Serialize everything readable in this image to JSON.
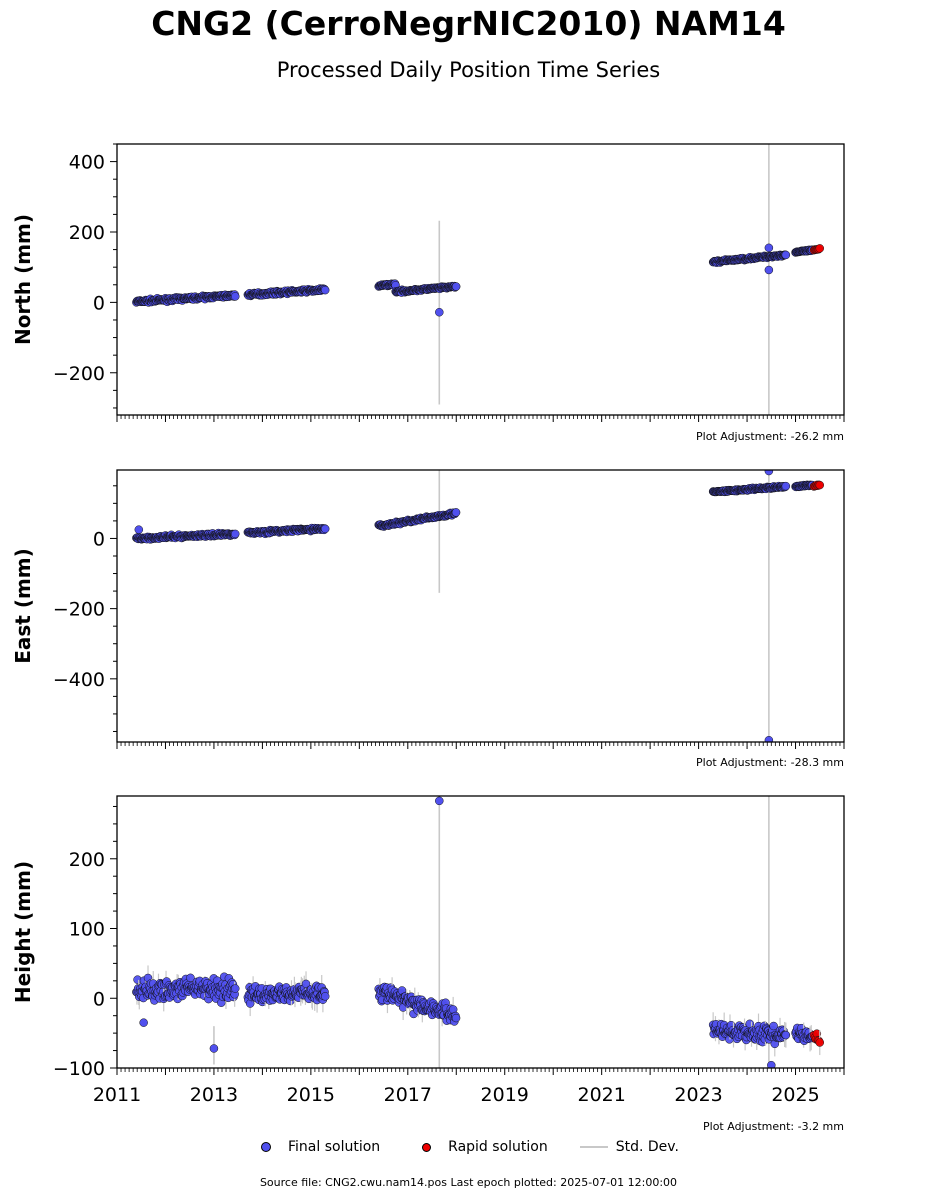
{
  "title": "CNG2 (CerroNegrNIC2010) NAM14",
  "subtitle": "Processed Daily Position Time Series",
  "source": "Source file: CNG2.cwu.nam14.pos  Last epoch plotted: 2025-07-01 12:00:00",
  "legend": {
    "final": "Final solution",
    "rapid": "Rapid solution",
    "std": "Std. Dev."
  },
  "colors": {
    "final": "#5050ee",
    "rapid": "#ee0000",
    "std": "#c8c8c8"
  },
  "chart_data": [
    {
      "type": "scatter",
      "id": "north",
      "ylabel": "North (mm)",
      "adjustment": "Plot Adjustment: -26.2 mm",
      "xlim": [
        2011,
        2026
      ],
      "ylim": [
        -320,
        450
      ],
      "yticks": [
        -200,
        0,
        200,
        400
      ],
      "ytick_labels": [
        "−200",
        "0",
        "200",
        "400"
      ],
      "segments": [
        {
          "x": [
            2011.4,
            2013.45
          ],
          "y": [
            2,
            20
          ],
          "noise": 4
        },
        {
          "x": [
            2013.7,
            2015.3
          ],
          "y": [
            22,
            36
          ],
          "noise": 4
        },
        {
          "x": [
            2016.4,
            2016.75
          ],
          "y": [
            47,
            52
          ],
          "noise": 3
        },
        {
          "x": [
            2016.75,
            2018.0
          ],
          "y": [
            30,
            45
          ],
          "noise": 3
        },
        {
          "x": [
            2023.3,
            2024.8
          ],
          "y": [
            115,
            135
          ],
          "noise": 3
        },
        {
          "x": [
            2025.0,
            2025.35
          ],
          "y": [
            143,
            148
          ],
          "noise": 2
        }
      ],
      "rapid": {
        "x": [
          2025.38,
          2025.5
        ],
        "y": [
          148,
          152
        ],
        "noise": 2
      },
      "outliers": [
        {
          "x": 2017.65,
          "y": -28
        },
        {
          "x": 2024.45,
          "y": 155
        },
        {
          "x": 2024.45,
          "y": 92
        }
      ],
      "std_lines": [
        {
          "x": 2017.65,
          "y0": -290,
          "y1": 232
        },
        {
          "x": 2024.45,
          "y0": -320,
          "y1": 450
        }
      ]
    },
    {
      "type": "scatter",
      "id": "east",
      "ylabel": "East (mm)",
      "adjustment": "Plot Adjustment: -28.3 mm",
      "xlim": [
        2011,
        2026
      ],
      "ylim": [
        -580,
        195
      ],
      "yticks": [
        -400,
        -200,
        0
      ],
      "ytick_labels": [
        "−400",
        "−200",
        "0"
      ],
      "segments": [
        {
          "x": [
            2011.4,
            2013.45
          ],
          "y": [
            0,
            13
          ],
          "noise": 4
        },
        {
          "x": [
            2013.7,
            2015.3
          ],
          "y": [
            16,
            28
          ],
          "noise": 4
        },
        {
          "x": [
            2016.4,
            2018.0
          ],
          "y": [
            35,
            72
          ],
          "noise": 4
        },
        {
          "x": [
            2023.3,
            2024.8
          ],
          "y": [
            132,
            148
          ],
          "noise": 3
        },
        {
          "x": [
            2025.0,
            2025.35
          ],
          "y": [
            148,
            152
          ],
          "noise": 2
        }
      ],
      "rapid": {
        "x": [
          2025.38,
          2025.5
        ],
        "y": [
          150,
          153
        ],
        "noise": 2
      },
      "outliers": [
        {
          "x": 2011.45,
          "y": 25
        },
        {
          "x": 2024.45,
          "y": 192
        },
        {
          "x": 2024.45,
          "y": -575
        }
      ],
      "std_lines": [
        {
          "x": 2017.65,
          "y0": -155,
          "y1": 195
        },
        {
          "x": 2024.45,
          "y0": -580,
          "y1": 195
        }
      ]
    },
    {
      "type": "scatter",
      "id": "height",
      "ylabel": "Height (mm)",
      "adjustment": "Plot Adjustment: -3.2 mm",
      "xlim": [
        2011,
        2026
      ],
      "ylim": [
        -100,
        290
      ],
      "yticks": [
        -100,
        0,
        100,
        200
      ],
      "ytick_labels": [
        "−100",
        "0",
        "100",
        "200"
      ],
      "xticks": [
        2011,
        2013,
        2015,
        2017,
        2019,
        2021,
        2023,
        2025
      ],
      "xtick_labels": [
        "2011",
        "2013",
        "2015",
        "2017",
        "2019",
        "2021",
        "2023",
        "2025"
      ],
      "segments": [
        {
          "x": [
            2011.4,
            2013.45
          ],
          "y": [
            10,
            15
          ],
          "noise": 14
        },
        {
          "x": [
            2013.7,
            2015.3
          ],
          "y": [
            5,
            8
          ],
          "noise": 12
        },
        {
          "x": [
            2016.4,
            2018.0
          ],
          "y": [
            10,
            -25
          ],
          "noise": 12
        },
        {
          "x": [
            2023.3,
            2024.8
          ],
          "y": [
            -45,
            -55
          ],
          "noise": 12
        },
        {
          "x": [
            2025.0,
            2025.35
          ],
          "y": [
            -50,
            -55
          ],
          "noise": 8
        }
      ],
      "rapid": {
        "x": [
          2025.38,
          2025.5
        ],
        "y": [
          -55,
          -60
        ],
        "noise": 6
      },
      "outliers": [
        {
          "x": 2013.0,
          "y": -72
        },
        {
          "x": 2017.65,
          "y": 283
        },
        {
          "x": 2024.5,
          "y": -96
        },
        {
          "x": 2011.55,
          "y": -35
        }
      ],
      "std_lines": [
        {
          "x": 2017.65,
          "y0": -100,
          "y1": 290
        },
        {
          "x": 2024.45,
          "y0": -100,
          "y1": 290
        },
        {
          "x": 2013.0,
          "y0": -95,
          "y1": -40
        }
      ]
    }
  ]
}
